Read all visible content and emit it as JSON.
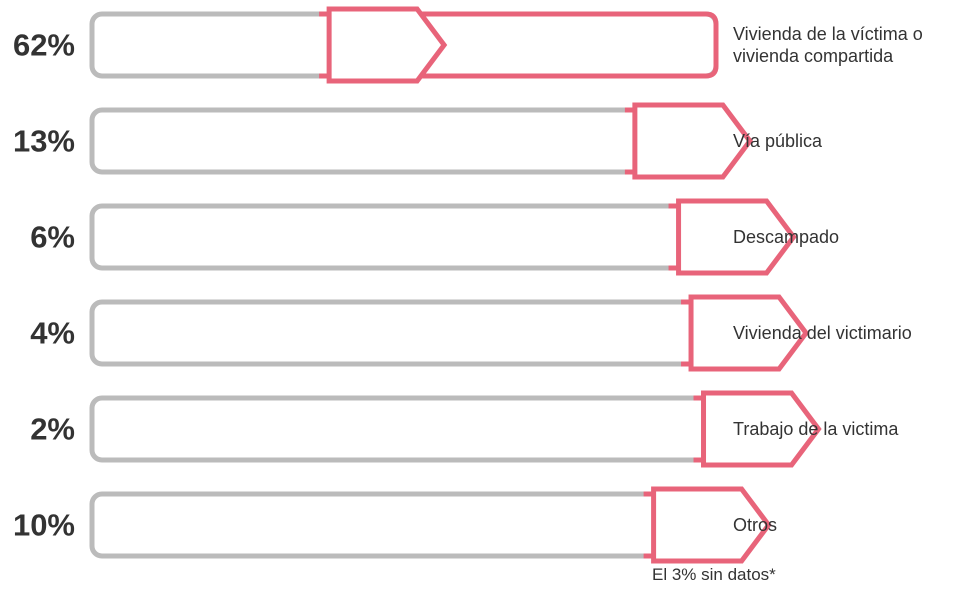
{
  "chart_data": {
    "type": "bar",
    "title": "",
    "xlabel": "",
    "ylabel": "",
    "ylim": [
      0,
      100
    ],
    "grid": false,
    "categories": [
      [
        "Vivienda de la víctima o",
        "vivienda compartida"
      ],
      [
        "Vía pública"
      ],
      [
        "Descampado"
      ],
      [
        "Vivienda del victimario"
      ],
      [
        "Trabajo de la victima"
      ],
      [
        "Otros"
      ]
    ],
    "values": [
      62,
      13,
      6,
      4,
      2,
      10
    ],
    "value_labels": [
      "62%",
      "13%",
      "6%",
      "4%",
      "2%",
      "10%"
    ],
    "footnote": "El 3% sin datos*"
  },
  "colors": {
    "accent": "#e8647a",
    "track": "#bbbbbb",
    "text": "#333333"
  }
}
